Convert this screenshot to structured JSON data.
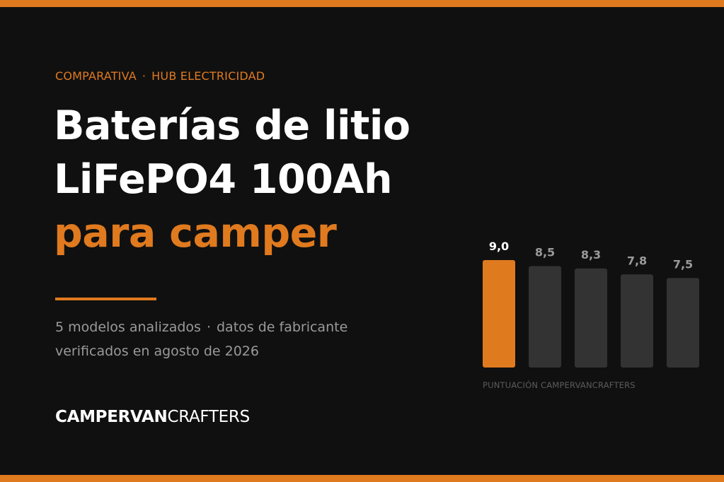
{
  "colors": {
    "background": "#101010",
    "accent": "#e07a1f",
    "bar_muted": "#333333"
  },
  "eyebrow": {
    "left": "COMPARATIVA",
    "separator": "·",
    "right": "HUB ELECTRICIDAD"
  },
  "title": {
    "line1": "Baterías de litio",
    "line2": "LiFePO4 100Ah",
    "line3": "para camper"
  },
  "subtitle": {
    "part1": "5 modelos analizados",
    "separator": "·",
    "part2": "datos de fabricante",
    "line2": "verificados en agosto de 2026"
  },
  "brand": {
    "bold": "CAMPERVAN",
    "light": "CRAFTERS"
  },
  "chart_data": {
    "type": "bar",
    "values": [
      9.0,
      8.5,
      8.3,
      7.8,
      7.5
    ],
    "value_labels": [
      "9,0",
      "8,5",
      "8,3",
      "7,8",
      "7,5"
    ],
    "highlight_index": 0,
    "xlabel": "PUNTUACIÓN CAMPERVANCRAFTERS",
    "grid": false,
    "legend": "none"
  }
}
